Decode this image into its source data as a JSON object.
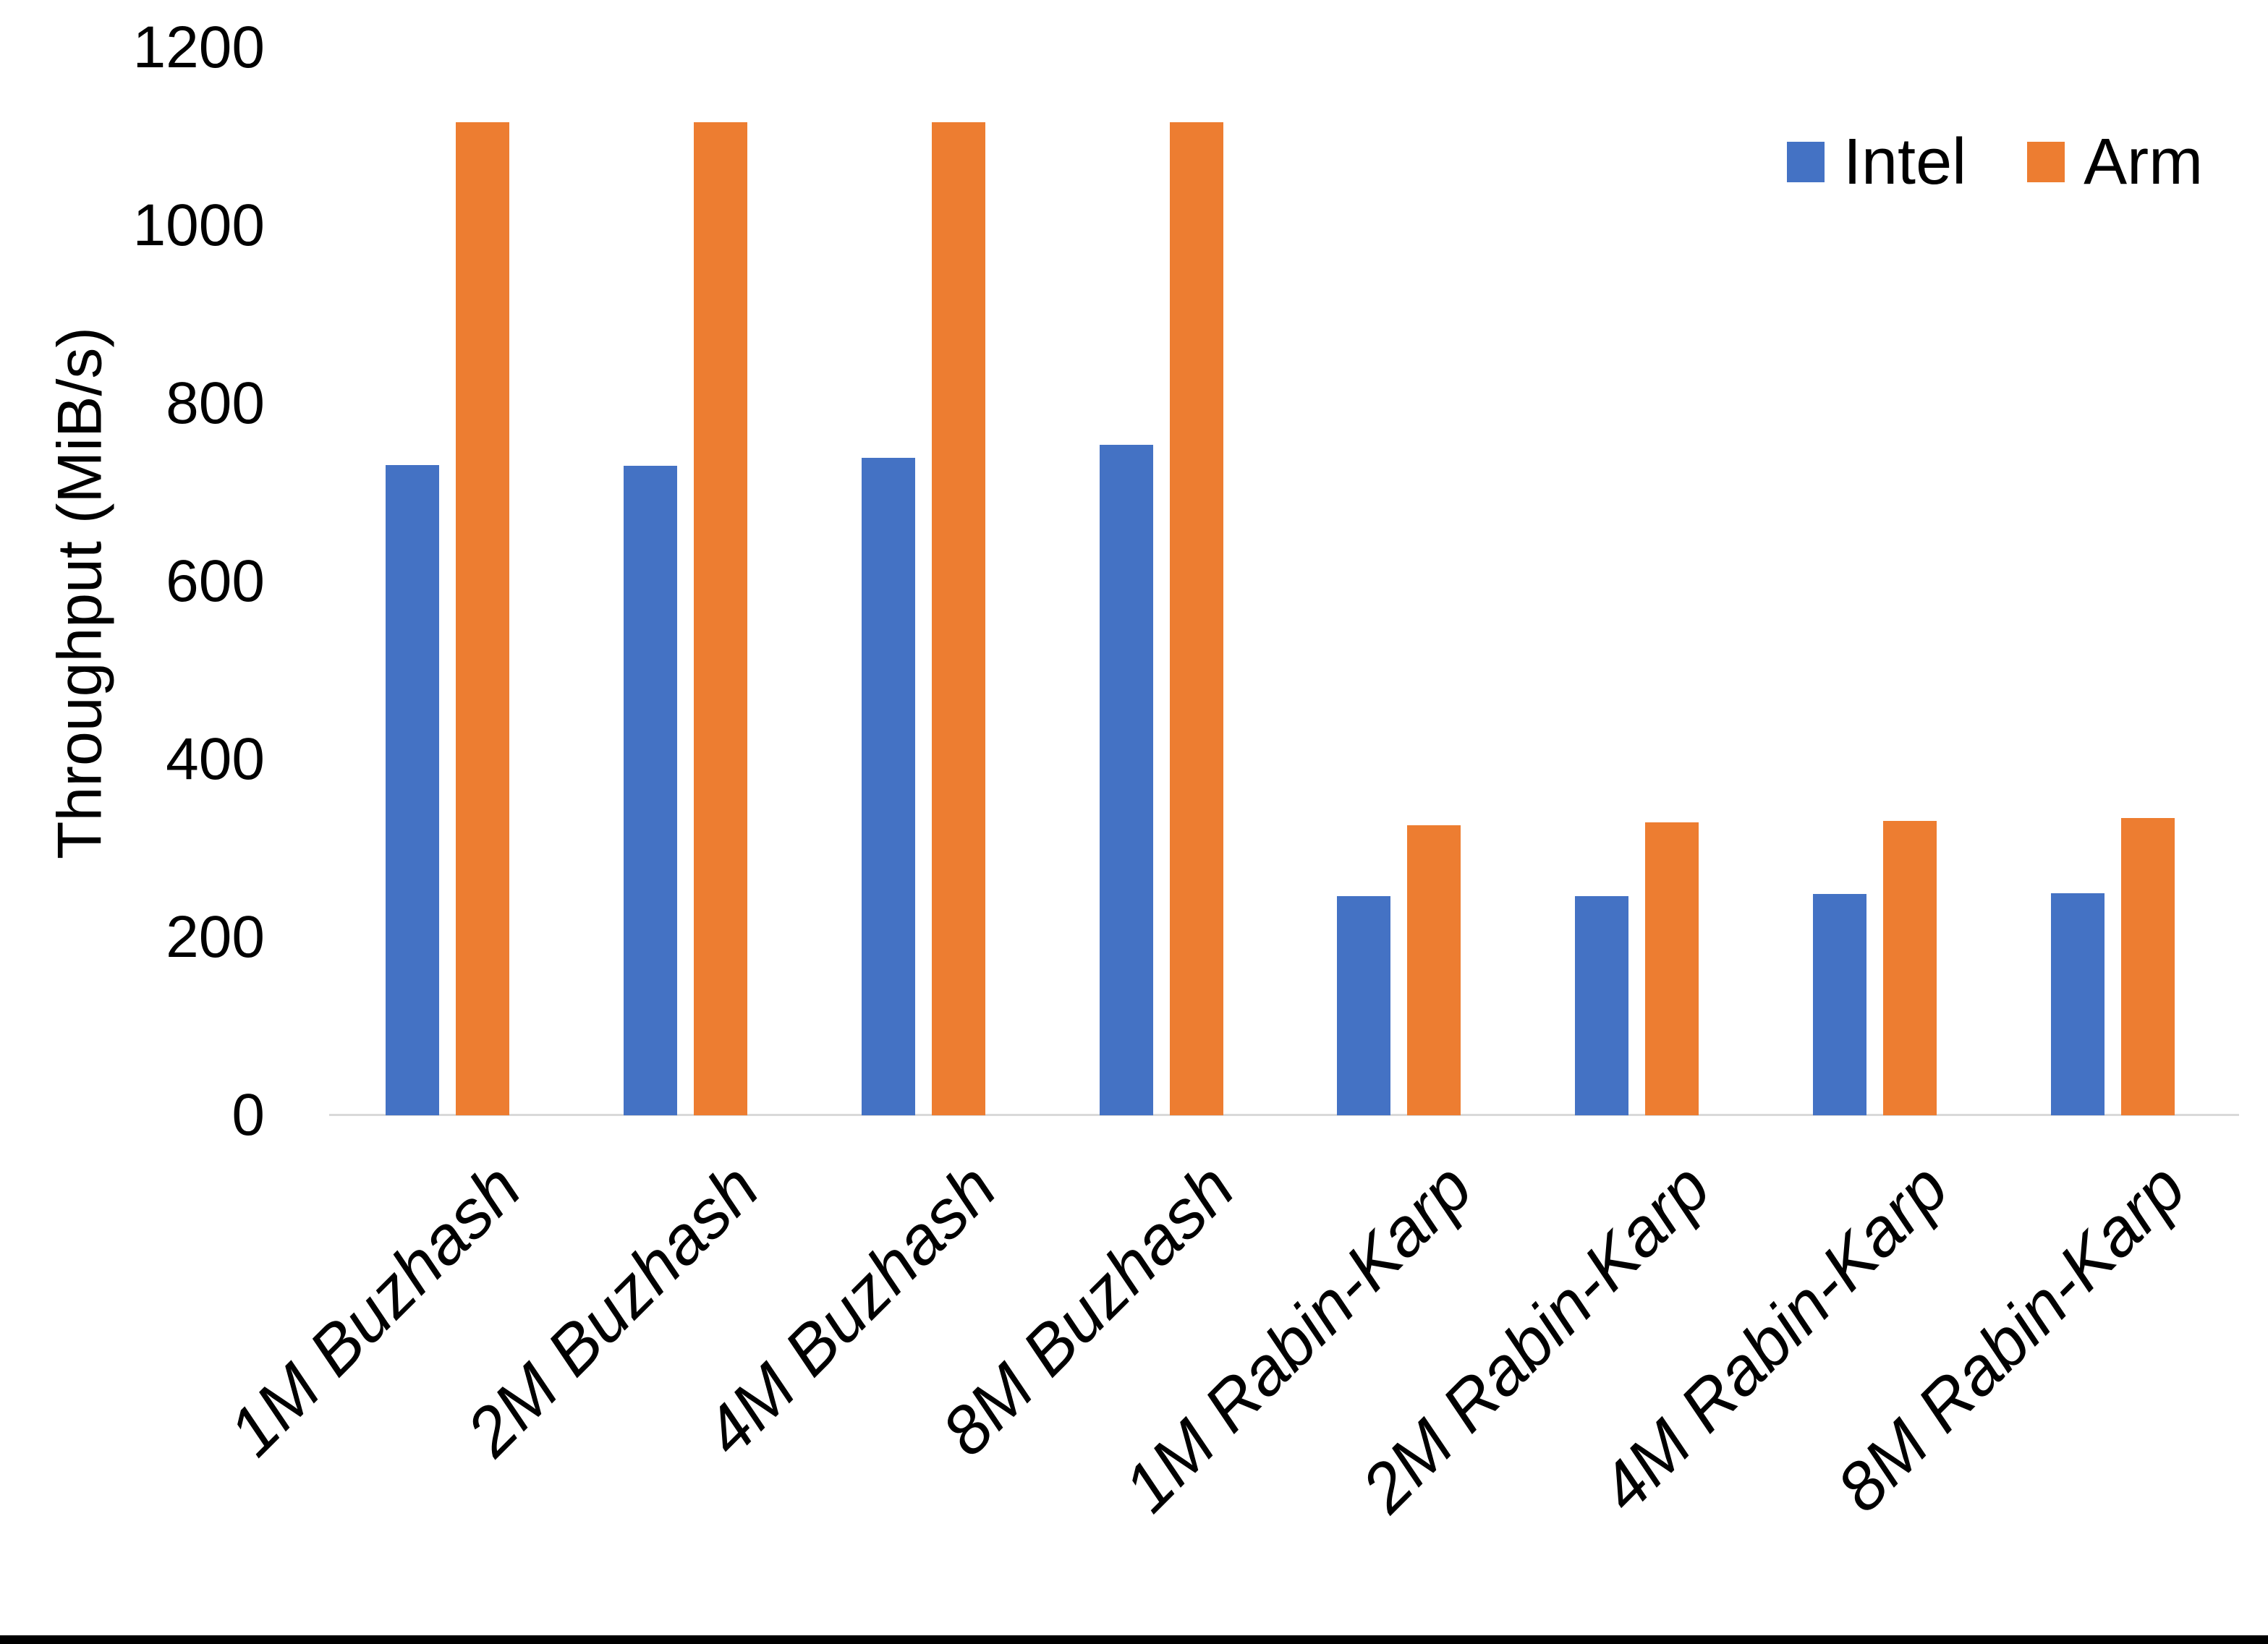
{
  "chart_data": {
    "type": "bar",
    "title": "",
    "xlabel": "",
    "ylabel": "Throughput (MiB/s)",
    "ylim": [
      0,
      1200
    ],
    "yticks": [
      0,
      200,
      400,
      600,
      800,
      1000,
      1200
    ],
    "grid": false,
    "legend_position": "top-right",
    "categories": [
      "1M Buzhash",
      "2M Buzhash",
      "4M Buzhash",
      "8M Buzhash",
      "1M Rabin-Karp",
      "2M Rabin-Karp",
      "4M Rabin-Karp",
      "8M Rabin-Karp"
    ],
    "series": [
      {
        "name": "Intel",
        "color": "#4472C4",
        "values": [
          731,
          730,
          739,
          754,
          246,
          246,
          249,
          250
        ]
      },
      {
        "name": "Arm",
        "color": "#ED7D31",
        "values": [
          1116,
          1116,
          1116,
          1116,
          326,
          329,
          331,
          334
        ]
      }
    ],
    "colors": {
      "axis_line": "#D9D9D9",
      "text": "#000000",
      "bottom_border": "#000000",
      "background": "#FFFFFF"
    }
  }
}
